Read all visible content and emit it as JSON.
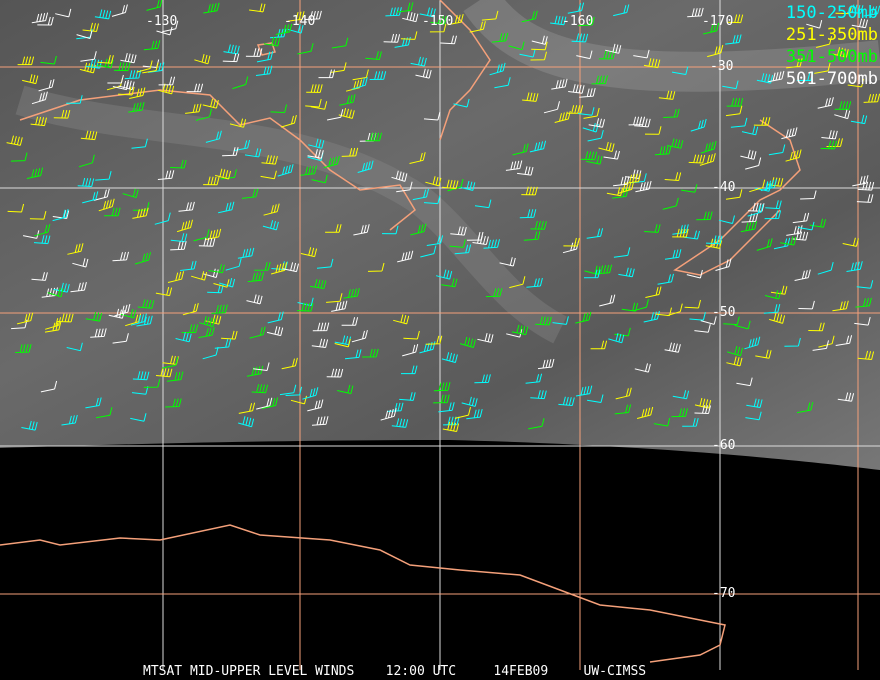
{
  "map": {
    "longitude_labels": [
      "-130",
      "-140",
      "-150",
      "-160",
      "-170"
    ],
    "latitude_labels": [
      "-30",
      "-40",
      "-50",
      "-60",
      "-70"
    ],
    "legend": [
      {
        "label": "150-250mb",
        "color": "#00ffff"
      },
      {
        "label": "251-350mb",
        "color": "#ffff00"
      },
      {
        "label": "351-500mb",
        "color": "#00ff00"
      },
      {
        "label": "501-700mb",
        "color": "#ffffff"
      }
    ],
    "coastline_color": "#f4a07a",
    "grid_color": "#f4a07a"
  },
  "footer": {
    "product": "MTSAT MID-UPPER LEVEL WINDS",
    "time": "12:00 UTC",
    "date": "14FEB09",
    "source": "UW-CIMSS"
  }
}
